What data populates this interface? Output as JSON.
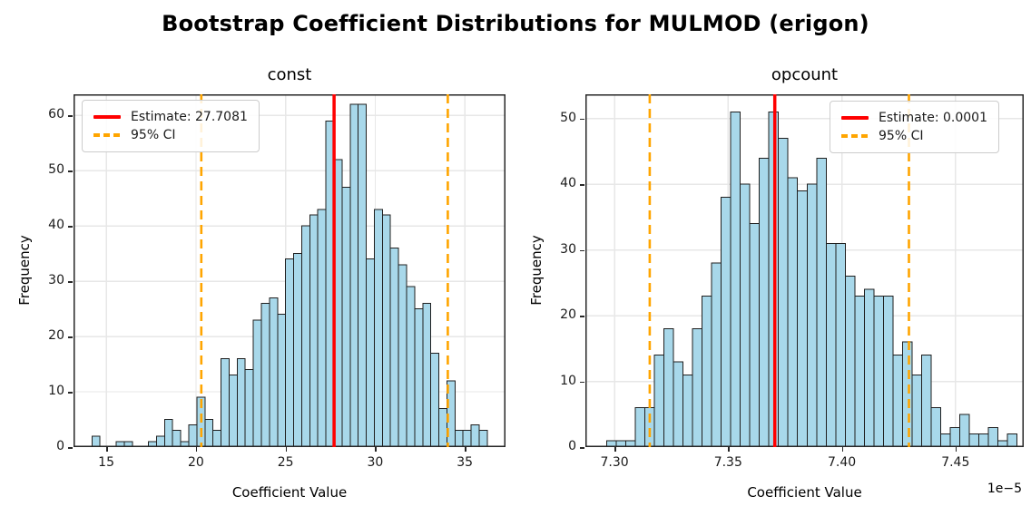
{
  "figure": {
    "title": "Bootstrap Coefficient Distributions for MULMOD (erigon)"
  },
  "colors": {
    "bar_fill": "#a8d8ea",
    "bar_edge": "#1f1f1f",
    "estimate_line": "#ff0000",
    "ci_line": "#ffa500",
    "grid": "#e7e7e7",
    "spine": "#262626"
  },
  "chart_data": [
    {
      "type": "histogram",
      "title": "const",
      "xlabel": "Coefficient Value",
      "ylabel": "Frequency",
      "bin_start": 14.2,
      "bin_width": 0.45,
      "counts": [
        2,
        0,
        0,
        1,
        1,
        0,
        0,
        1,
        2,
        5,
        3,
        1,
        4,
        9,
        5,
        3,
        16,
        13,
        16,
        14,
        23,
        26,
        27,
        24,
        34,
        35,
        40,
        42,
        43,
        59,
        52,
        47,
        62,
        62,
        34,
        43,
        42,
        36,
        33,
        29,
        25,
        26,
        17,
        7,
        12,
        3,
        3,
        4,
        3
      ],
      "estimate_x": 27.7081,
      "ci": [
        20.3,
        34.05
      ],
      "xlim": [
        13.17,
        37.27
      ],
      "ylim": [
        0,
        63.8
      ],
      "xticks": [
        15,
        20,
        25,
        30,
        35
      ],
      "xtick_labels": [
        "15",
        "20",
        "25",
        "30",
        "35"
      ],
      "yticks": [
        0,
        10,
        20,
        30,
        40,
        50,
        60
      ],
      "ytick_labels": [
        "0",
        "10",
        "20",
        "30",
        "40",
        "50",
        "60"
      ],
      "grid": true,
      "legend": {
        "estimate": "Estimate: 27.7081",
        "ci": "95% CI",
        "loc": "upper-left"
      }
    },
    {
      "type": "histogram",
      "title": "opcount",
      "xlabel": "Coefficient Value",
      "ylabel": "Frequency",
      "offset_text": "1e−5",
      "bin_start": 7.2965,
      "bin_width": 0.0042,
      "counts": [
        1,
        1,
        1,
        6,
        6,
        14,
        18,
        13,
        11,
        18,
        23,
        28,
        38,
        51,
        40,
        34,
        44,
        51,
        47,
        41,
        39,
        40,
        44,
        31,
        31,
        26,
        23,
        24,
        23,
        23,
        14,
        16,
        11,
        14,
        6,
        2,
        3,
        5,
        2,
        2,
        3,
        1,
        2
      ],
      "estimate_x": 7.3705,
      "ci": [
        7.3155,
        7.4295
      ],
      "xlim": [
        7.2872,
        7.48
      ],
      "ylim": [
        0,
        53.7
      ],
      "xticks": [
        7.3,
        7.35,
        7.4,
        7.45
      ],
      "xtick_labels": [
        "7.30",
        "7.35",
        "7.40",
        "7.45"
      ],
      "yticks": [
        0,
        10,
        20,
        30,
        40,
        50
      ],
      "ytick_labels": [
        "0",
        "10",
        "20",
        "30",
        "40",
        "50"
      ],
      "grid": true,
      "legend": {
        "estimate": "Estimate: 0.0001",
        "ci": "95% CI",
        "loc": "upper-right"
      }
    }
  ]
}
